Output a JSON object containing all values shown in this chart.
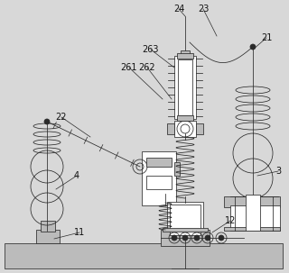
{
  "figsize": [
    3.2,
    3.03
  ],
  "dpi": 100,
  "bg_color": "#d8d8d8",
  "line_color": "#2a2a2a",
  "label_color": "#111111",
  "white": "#ffffff",
  "gray": "#bbbbbb"
}
